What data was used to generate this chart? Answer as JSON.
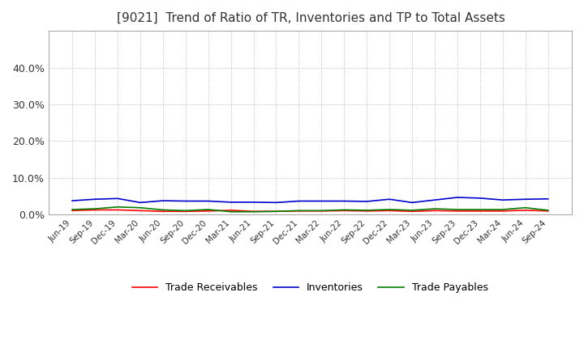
{
  "title": "[9021]  Trend of Ratio of TR, Inventories and TP to Total Assets",
  "title_fontsize": 11,
  "ylim": [
    0,
    0.5
  ],
  "yticks": [
    0.0,
    0.1,
    0.2,
    0.3,
    0.4
  ],
  "x_labels": [
    "Jun-19",
    "Sep-19",
    "Dec-19",
    "Mar-20",
    "Jun-20",
    "Sep-20",
    "Dec-20",
    "Mar-21",
    "Jun-21",
    "Sep-21",
    "Dec-21",
    "Mar-22",
    "Jun-22",
    "Sep-22",
    "Dec-22",
    "Mar-23",
    "Jun-23",
    "Sep-23",
    "Dec-23",
    "Mar-24",
    "Jun-24",
    "Sep-24"
  ],
  "trade_receivables": [
    0.011,
    0.013,
    0.013,
    0.011,
    0.009,
    0.009,
    0.01,
    0.012,
    0.009,
    0.009,
    0.01,
    0.01,
    0.011,
    0.01,
    0.011,
    0.009,
    0.011,
    0.01,
    0.01,
    0.01,
    0.012,
    0.01
  ],
  "inventories": [
    0.038,
    0.042,
    0.044,
    0.033,
    0.038,
    0.037,
    0.037,
    0.034,
    0.034,
    0.033,
    0.037,
    0.037,
    0.037,
    0.036,
    0.042,
    0.033,
    0.04,
    0.047,
    0.045,
    0.04,
    0.042,
    0.043
  ],
  "trade_payables": [
    0.014,
    0.016,
    0.021,
    0.019,
    0.013,
    0.011,
    0.014,
    0.008,
    0.008,
    0.009,
    0.011,
    0.011,
    0.013,
    0.012,
    0.014,
    0.012,
    0.016,
    0.014,
    0.014,
    0.014,
    0.019,
    0.012
  ],
  "tr_color": "#ff0000",
  "inv_color": "#0000cc",
  "tp_color": "#008000",
  "legend_labels": [
    "Trade Receivables",
    "Inventories",
    "Trade Payables"
  ],
  "grid_color": "#aaaaaa",
  "background_color": "#ffffff",
  "plot_bg_color": "#ffffff",
  "border_color": "#aaaaaa"
}
